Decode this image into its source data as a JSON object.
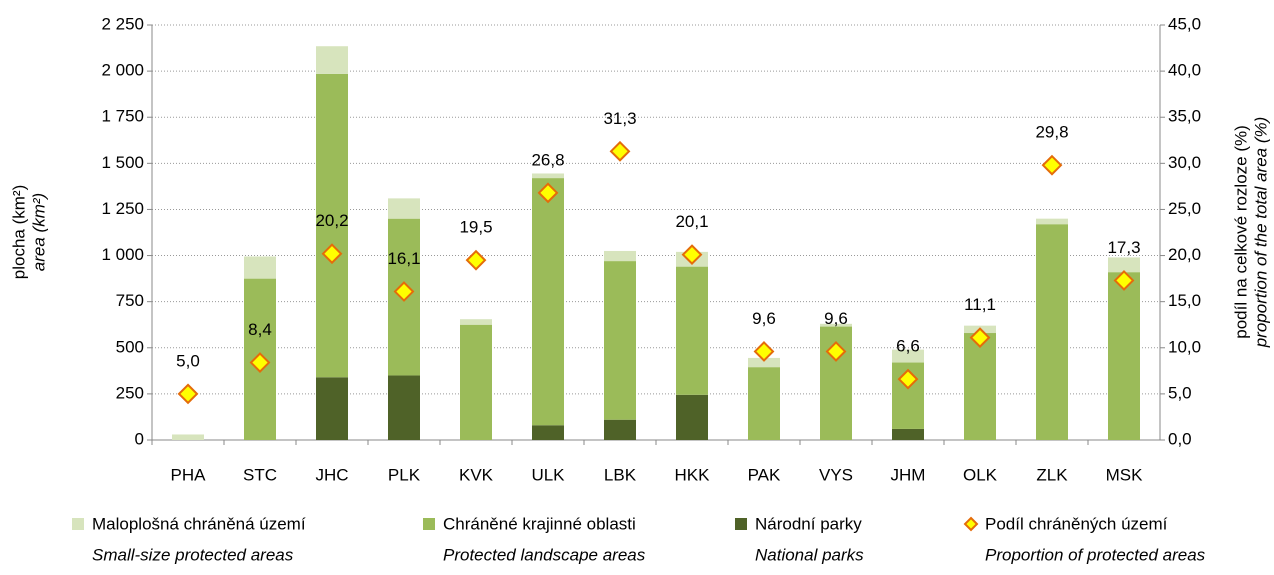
{
  "chart_data": {
    "type": "bar",
    "categories": [
      "PHA",
      "STC",
      "JHC",
      "PLK",
      "KVK",
      "ULK",
      "LBK",
      "HKK",
      "PAK",
      "VYS",
      "JHM",
      "OLK",
      "ZLK",
      "MSK"
    ],
    "y_label": "plocha (km²)",
    "y_label_en": "area (km²)",
    "y2_label": "podíl na celkové rozloze (%)",
    "y2_label_en": "proportion of the total area (%)",
    "series": [
      {
        "name": "Maloplošná chráněná území",
        "name_en": "Small-size protected areas",
        "color": "#d7e4bd",
        "values": [
          30,
          120,
          150,
          110,
          30,
          25,
          55,
          80,
          50,
          15,
          70,
          40,
          30,
          80
        ]
      },
      {
        "name": "Chráněné krajinné oblasti",
        "name_en": "Protected landscape areas",
        "color": "#9bbb59",
        "values": [
          0,
          875,
          1645,
          850,
          625,
          1340,
          860,
          695,
          395,
          615,
          360,
          580,
          1170,
          910
        ]
      },
      {
        "name": "Národní parky",
        "name_en": "National parks",
        "color": "#4f6228",
        "values": [
          0,
          0,
          340,
          350,
          0,
          80,
          110,
          245,
          0,
          0,
          60,
          0,
          0,
          0
        ]
      },
      {
        "name": "Podíl chráněných území",
        "name_en": "Proportion of protected areas",
        "color": "#ffff00",
        "edge_color": "#e46c0a",
        "axis": "y2",
        "type": "scatter",
        "values": [
          5.0,
          8.4,
          20.2,
          16.1,
          19.5,
          26.8,
          31.3,
          20.1,
          9.6,
          9.6,
          6.6,
          11.1,
          29.8,
          17.3
        ],
        "value_labels": [
          "5,0",
          "8,4",
          "20,2",
          "16,1",
          "19,5",
          "26,8",
          "31,3",
          "20,1",
          "9,6",
          "9,6",
          "6,6",
          "11,1",
          "29,8",
          "17,3"
        ]
      }
    ],
    "ylim": [
      0,
      2250
    ],
    "yticks": [
      0,
      250,
      500,
      750,
      {
        "value": 1000,
        "label": "1 000"
      },
      {
        "value": 1250,
        "label": "1 250"
      },
      {
        "value": 1500,
        "label": "1 500"
      },
      {
        "value": 1750,
        "label": "1 750"
      },
      {
        "value": 2000,
        "label": "2 000"
      },
      {
        "value": 2250,
        "label": "2 250"
      }
    ],
    "y2lim": [
      0,
      45
    ],
    "y2ticks": [
      {
        "value": 0,
        "label": "0,0"
      },
      {
        "value": 5,
        "label": "5,0"
      },
      {
        "value": 10,
        "label": "10,0"
      },
      {
        "value": 15,
        "label": "15,0"
      },
      {
        "value": 20,
        "label": "20,0"
      },
      {
        "value": 25,
        "label": "25,0"
      },
      {
        "value": 30,
        "label": "30,0"
      },
      {
        "value": 35,
        "label": "35,0"
      },
      {
        "value": 40,
        "label": "40,0"
      },
      {
        "value": 45,
        "label": "45,0"
      }
    ],
    "grid": true,
    "legend": "bottom"
  }
}
